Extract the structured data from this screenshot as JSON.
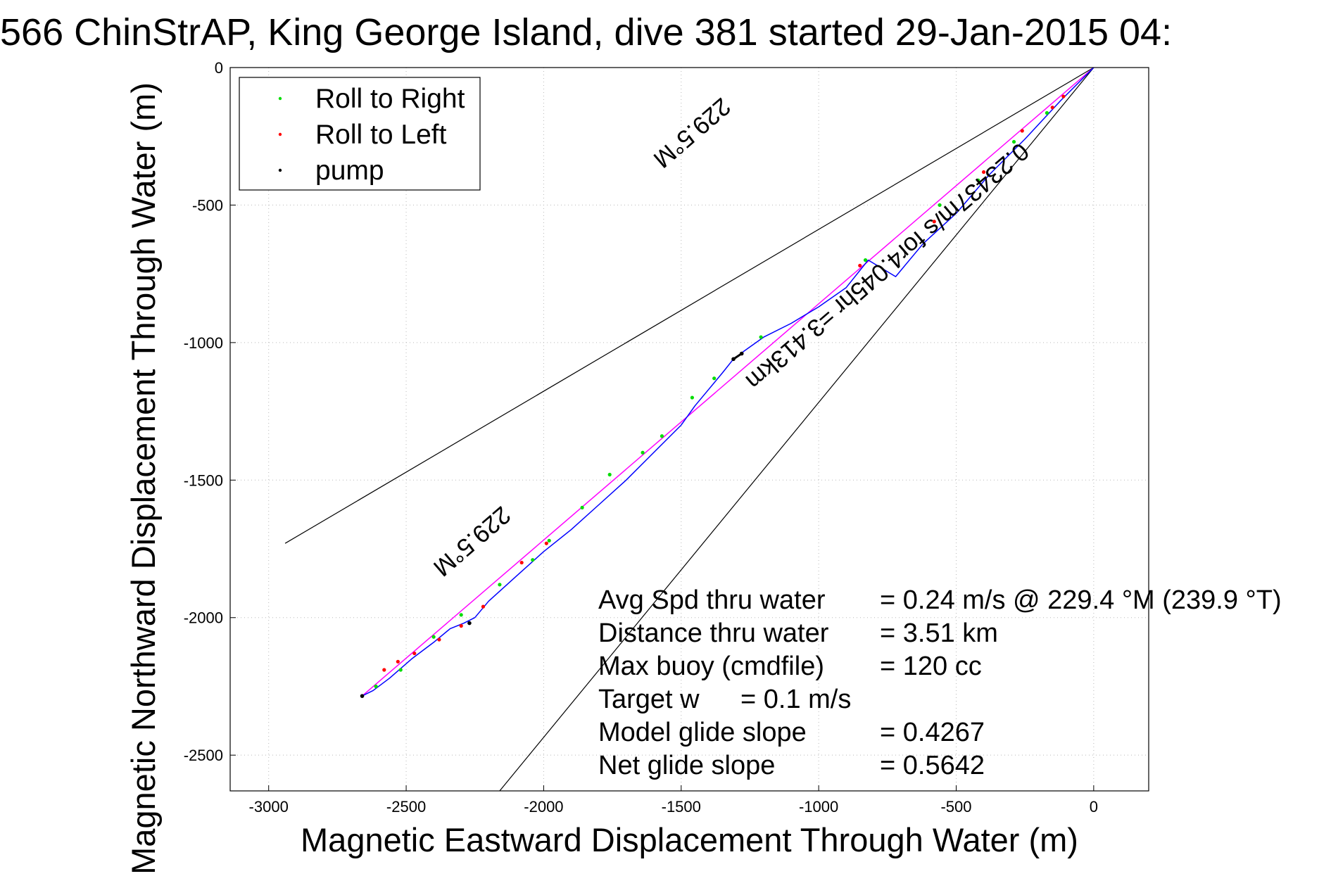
{
  "chart_data": {
    "type": "line",
    "title": "566 ChinStrAP, King George Island, dive 381 started 29-Jan-2015 04:",
    "xlabel": "Magnetic Eastward Displacement Through Water (m)",
    "ylabel": "Magnetic Northward Displacement Through Water (m)",
    "xlim": [
      -3140,
      200
    ],
    "ylim": [
      -2630,
      0
    ],
    "xticks": [
      -3000,
      -2500,
      -2000,
      -1500,
      -1000,
      -500,
      0
    ],
    "yticks": [
      0,
      -500,
      -1000,
      -1500,
      -2000,
      -2500
    ],
    "xtick_labels": [
      "-3000",
      "-2500",
      "-2000",
      "-1500",
      "-1000",
      "-500",
      "0"
    ],
    "ytick_labels": [
      "0",
      "-500",
      "-1000",
      "-1500",
      "-2000",
      "-2500"
    ],
    "grid": true,
    "legend_position": "top-left",
    "legend": [
      {
        "name": "Roll to Right",
        "color": "#00dd00"
      },
      {
        "name": "Roll to Left",
        "color": "#ff0000"
      },
      {
        "name": "pump",
        "color": "#000000"
      }
    ],
    "track": {
      "color": "#0000ff",
      "x": [
        0,
        -120,
        -250,
        -380,
        -500,
        -620,
        -720,
        -820,
        -900,
        -1000,
        -1100,
        -1200,
        -1270,
        -1310,
        -1350,
        -1400,
        -1450,
        -1500,
        -1560,
        -1620,
        -1700,
        -1800,
        -1900,
        -2000,
        -2100,
        -2200,
        -2250,
        -2290,
        -2340,
        -2400,
        -2480,
        -2560,
        -2620,
        -2660
      ],
      "y": [
        0,
        -120,
        -260,
        -390,
        -530,
        -640,
        -760,
        -700,
        -800,
        -870,
        -930,
        -980,
        -1030,
        -1060,
        -1110,
        -1170,
        -1230,
        -1300,
        -1360,
        -1420,
        -1500,
        -1590,
        -1680,
        -1760,
        -1850,
        -1940,
        -2000,
        -2020,
        -2040,
        -2090,
        -2150,
        -2220,
        -2265,
        -2285
      ]
    },
    "mean_line": {
      "color": "#ff00ff",
      "x": [
        0,
        -2660
      ],
      "y": [
        0,
        -2285
      ]
    },
    "envelope_lines": [
      {
        "color": "#000000",
        "x": [
          0,
          -2940
        ],
        "y": [
          0,
          -1730
        ]
      },
      {
        "color": "#000000",
        "x": [
          0,
          -2160
        ],
        "y": [
          0,
          -2630
        ]
      }
    ],
    "roll_right_points": {
      "x": [
        -170,
        -290,
        -420,
        -560,
        -830,
        -1210,
        -1380,
        -1460,
        -1570,
        -1640,
        -1760,
        -1860,
        -1980,
        -2040,
        -2160,
        -2300,
        -2400,
        -2520,
        -2610
      ],
      "y": [
        -165,
        -270,
        -410,
        -500,
        -700,
        -980,
        -1130,
        -1200,
        -1340,
        -1400,
        -1480,
        -1600,
        -1720,
        -1790,
        -1880,
        -1990,
        -2070,
        -2190,
        -2250
      ]
    },
    "roll_left_points": {
      "x": [
        -110,
        -150,
        -260,
        -400,
        -580,
        -850,
        -1280,
        -1990,
        -2080,
        -2220,
        -2300,
        -2380,
        -2470,
        -2530,
        -2580
      ],
      "y": [
        -105,
        -145,
        -230,
        -380,
        -560,
        -720,
        -1040,
        -1730,
        -1800,
        -1960,
        -2030,
        -2080,
        -2130,
        -2160,
        -2190
      ]
    },
    "pump_points": {
      "x": [
        -1280,
        -1310,
        -2270,
        -2660
      ],
      "y": [
        -1040,
        -1060,
        -2020,
        -2285
      ]
    },
    "annotations": [
      {
        "text": "229.5°M",
        "x": -1480,
        "y": -215
      },
      {
        "text": "0.23437m/s for4.045hr =3.413km",
        "x": -770,
        "y": -700
      },
      {
        "text": "229.5°M",
        "x": -2280,
        "y": -1700
      }
    ],
    "stats": [
      {
        "label": "Avg Spd thru water",
        "value": "=  0.24 m/s @ 229.4 °M (239.9 °T)"
      },
      {
        "label": "Distance thru water",
        "value": "=  3.51 km"
      },
      {
        "label": "Max buoy (cmdfile)",
        "value": "= 120 cc"
      },
      {
        "label": "Target w",
        "value": "= 0.1 m/s"
      },
      {
        "label": "Model glide slope",
        "value": "= 0.4267"
      },
      {
        "label": "Net glide slope",
        "value": "= 0.5642"
      }
    ]
  }
}
